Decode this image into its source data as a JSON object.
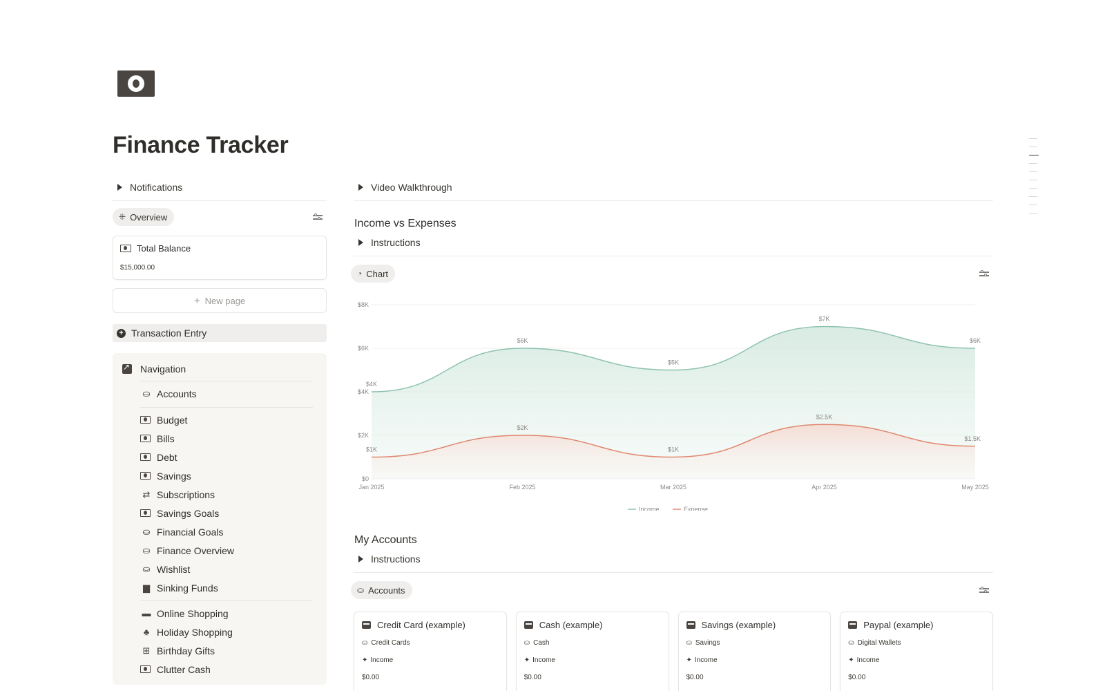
{
  "page": {
    "title": "Finance Tracker",
    "icon": "money-icon"
  },
  "left": {
    "notifications_label": "Notifications",
    "overview_view_label": "Overview",
    "total_balance": {
      "title": "Total Balance",
      "value": "$15,000.00"
    },
    "new_page_label": "New page",
    "transaction_entry_label": "Transaction Entry",
    "navigation": {
      "title": "Navigation",
      "accounts_label": "Accounts",
      "group1": [
        {
          "label": "Budget",
          "icon": "money-icon"
        },
        {
          "label": "Bills",
          "icon": "money-icon"
        },
        {
          "label": "Debt",
          "icon": "money-icon"
        },
        {
          "label": "Savings",
          "icon": "money-icon"
        },
        {
          "label": "Subscriptions",
          "icon": "repeat-icon"
        },
        {
          "label": "Savings Goals",
          "icon": "money-icon"
        },
        {
          "label": "Financial Goals",
          "icon": "coins-icon"
        },
        {
          "label": "Finance Overview",
          "icon": "coins-icon"
        },
        {
          "label": "Wishlist",
          "icon": "coins-icon"
        },
        {
          "label": "Sinking Funds",
          "icon": "jar-icon"
        }
      ],
      "group2": [
        {
          "label": "Online Shopping",
          "icon": "laptop-icon"
        },
        {
          "label": "Holiday Shopping",
          "icon": "tree-icon"
        },
        {
          "label": "Birthday Gifts",
          "icon": "gift-icon"
        },
        {
          "label": "Clutter Cash",
          "icon": "money-icon"
        }
      ]
    }
  },
  "right": {
    "video_walkthrough_label": "Video Walkthrough",
    "income_section": {
      "title": "Income vs Expenses",
      "instructions_label": "Instructions",
      "chart_view_label": "Chart"
    },
    "accounts_section": {
      "title": "My Accounts",
      "instructions_label": "Instructions",
      "accounts_view_label": "Accounts",
      "cards": [
        {
          "title": "Credit Card (example)",
          "category": "Credit Cards",
          "income_label": "Income",
          "amount": "$0.00"
        },
        {
          "title": "Cash (example)",
          "category": "Cash",
          "income_label": "Income",
          "amount": "$0.00"
        },
        {
          "title": "Savings (example)",
          "category": "Savings",
          "income_label": "Income",
          "amount": "$0.00"
        },
        {
          "title": "Paypal (example)",
          "category": "Digital Wallets",
          "income_label": "Income",
          "amount": "$0.00"
        }
      ]
    }
  },
  "chart_data": {
    "type": "area",
    "categories": [
      "Jan 2025",
      "Feb 2025",
      "Mar 2025",
      "Apr 2025",
      "May 2025"
    ],
    "series": [
      {
        "name": "Income",
        "values": [
          4000,
          6000,
          5000,
          7000,
          6000
        ],
        "labels": [
          "$4K",
          "$6K",
          "$5K",
          "$7K",
          "$6K"
        ],
        "color": "#8ec3ad"
      },
      {
        "name": "Expense",
        "values": [
          1000,
          2000,
          1000,
          2500,
          1500
        ],
        "labels": [
          "$1K",
          "$2K",
          "$1K",
          "$2.5K",
          "$1.5K"
        ],
        "color": "#e0876f"
      }
    ],
    "y_ticks": [
      {
        "value": 0,
        "label": "$0"
      },
      {
        "value": 2000,
        "label": "$2K"
      },
      {
        "value": 4000,
        "label": "$4K"
      },
      {
        "value": 6000,
        "label": "$6K"
      },
      {
        "value": 8000,
        "label": "$8K"
      }
    ],
    "ylim": [
      0,
      8000
    ],
    "grid": true,
    "legend": "bottom-center"
  }
}
